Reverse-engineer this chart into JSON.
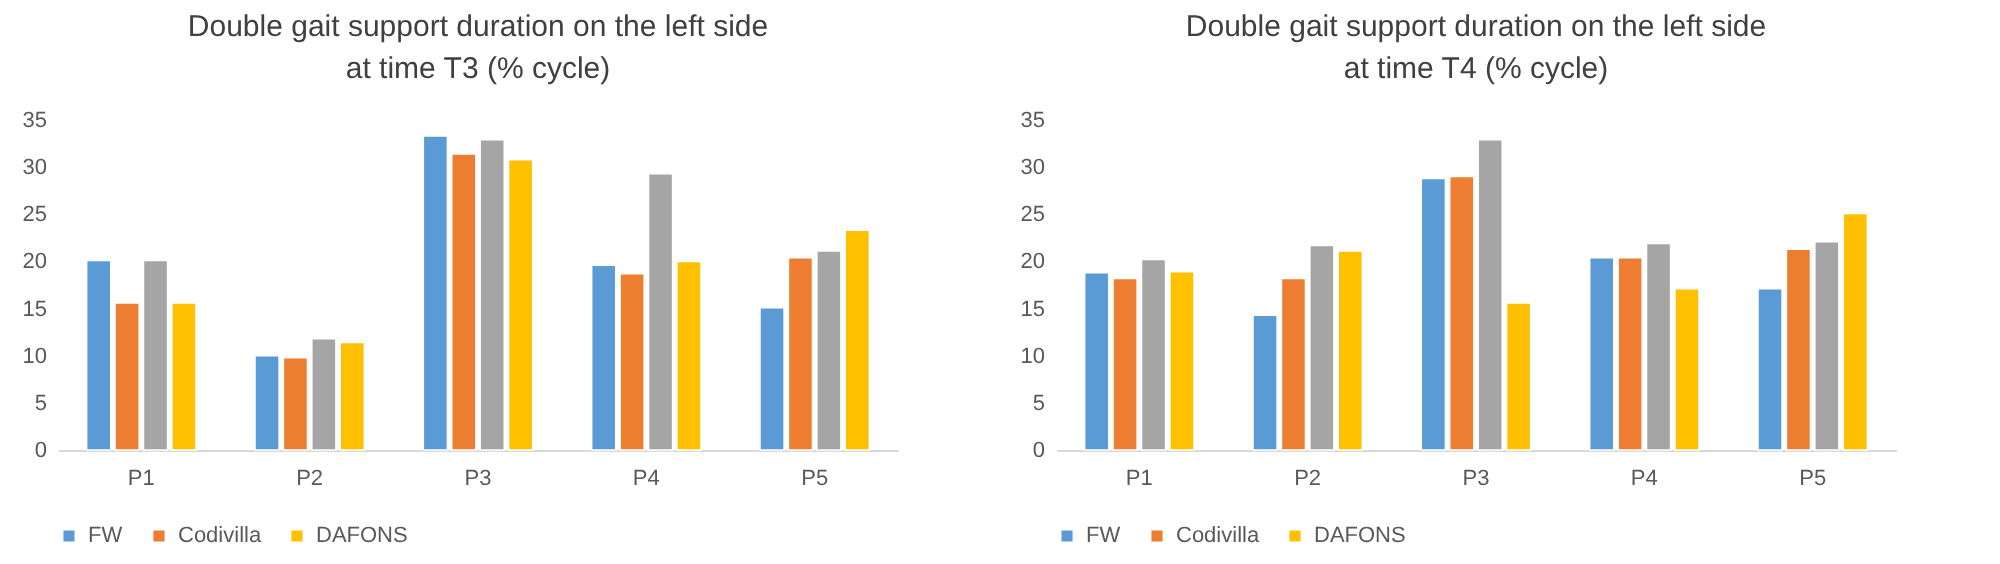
{
  "chart_data": [
    {
      "type": "bar",
      "title": "Double gait support duration on the left side at time T3 (% cycle)",
      "categories": [
        "P1",
        "P2",
        "P3",
        "P4",
        "P5"
      ],
      "ylim": [
        0,
        35
      ],
      "yticks": [
        0,
        5,
        10,
        15,
        20,
        25,
        30,
        35
      ],
      "grid": false,
      "legend": "bottom",
      "series": [
        {
          "name": "FW",
          "color": "#5b9bd5",
          "values": [
            20.1,
            10.0,
            33.3,
            19.6,
            15.1
          ]
        },
        {
          "name": "Codivilla",
          "color": "#ed7d31",
          "values": [
            15.6,
            9.8,
            31.4,
            18.7,
            20.4
          ]
        },
        {
          "color": "#a5a5a5",
          "values": [
            20.1,
            11.8,
            32.9,
            29.3,
            21.1
          ]
        },
        {
          "name": "DAFONS",
          "color": "#ffc000",
          "values": [
            15.6,
            11.4,
            30.8,
            20.0,
            23.3
          ]
        }
      ]
    },
    {
      "type": "bar",
      "title": "Double gait support duration on the left side at time T4 (% cycle)",
      "categories": [
        "P1",
        "P2",
        "P3",
        "P4",
        "P5"
      ],
      "ylim": [
        0,
        35
      ],
      "yticks": [
        0,
        5,
        10,
        15,
        20,
        25,
        30,
        35
      ],
      "grid": false,
      "legend": "bottom",
      "series": [
        {
          "name": "FW",
          "color": "#5b9bd5",
          "values": [
            18.8,
            14.3,
            28.8,
            20.4,
            17.1
          ]
        },
        {
          "name": "Codivilla",
          "color": "#ed7d31",
          "values": [
            18.2,
            18.2,
            29.0,
            20.4,
            21.3
          ]
        },
        {
          "color": "#a5a5a5",
          "values": [
            20.2,
            21.7,
            32.9,
            21.9,
            22.1
          ]
        },
        {
          "name": "DAFONS",
          "color": "#ffc000",
          "values": [
            18.9,
            21.1,
            15.6,
            17.1,
            25.1
          ]
        }
      ]
    }
  ]
}
